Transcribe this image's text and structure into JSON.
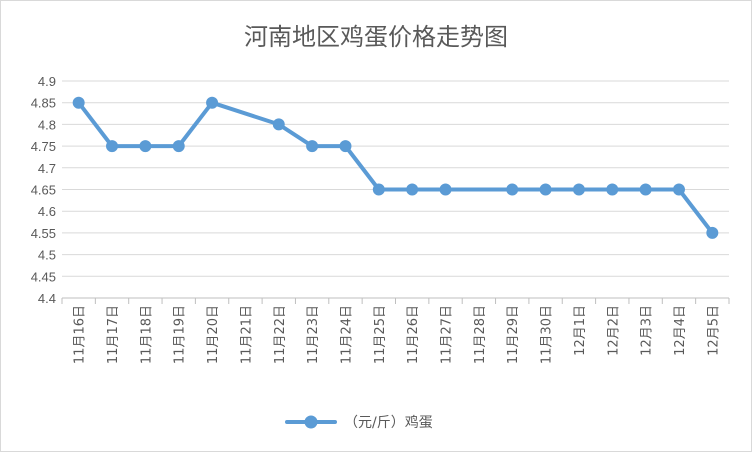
{
  "chart_data": {
    "type": "line",
    "title": "河南地区鸡蛋价格走势图",
    "categories": [
      "11月16日",
      "11月17日",
      "11月18日",
      "11月19日",
      "11月20日",
      "11月21日",
      "11月22日",
      "11月23日",
      "11月24日",
      "11月25日",
      "11月26日",
      "11月27日",
      "11月28日",
      "11月29日",
      "11月30日",
      "12月1日",
      "12月2日",
      "12月3日",
      "12月4日",
      "12月5日"
    ],
    "series": [
      {
        "name": "（元/斤）鸡蛋",
        "color": "#5b9bd5",
        "values": [
          4.85,
          4.75,
          4.75,
          4.75,
          4.85,
          null,
          4.8,
          4.75,
          4.75,
          4.65,
          4.65,
          4.65,
          null,
          4.65,
          4.65,
          4.65,
          4.65,
          4.65,
          4.65,
          4.55
        ]
      }
    ],
    "ylim": [
      4.4,
      4.9
    ],
    "yticks": [
      "4.4",
      "4.45",
      "4.5",
      "4.55",
      "4.6",
      "4.65",
      "4.7",
      "4.75",
      "4.8",
      "4.85",
      "4.9"
    ],
    "xlabel": "",
    "ylabel": "",
    "grid": true,
    "legend": "bottom"
  }
}
